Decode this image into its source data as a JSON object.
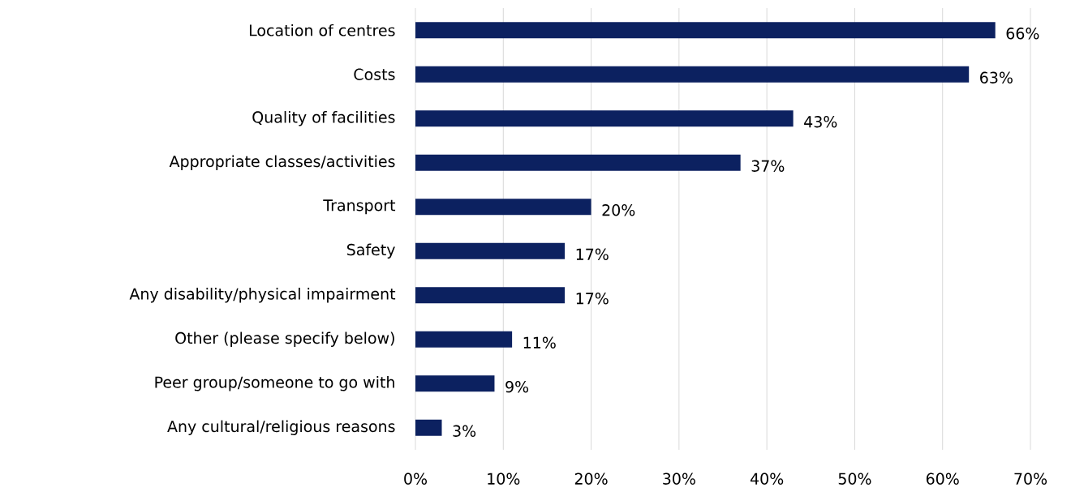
{
  "chart_data": {
    "type": "bar",
    "orientation": "horizontal",
    "categories": [
      "Location of centres",
      "Costs",
      "Quality of facilities",
      "Appropriate classes/activities",
      "Transport",
      "Safety",
      "Any disability/physical impairment",
      "Other (please specify below)",
      "Peer group/someone to go with",
      "Any cultural/religious reasons"
    ],
    "values": [
      66,
      63,
      43,
      37,
      20,
      17,
      17,
      11,
      9,
      3
    ],
    "value_labels": [
      "66%",
      "63%",
      "43%",
      "37%",
      "20%",
      "17%",
      "17%",
      "11%",
      "9%",
      "3%"
    ],
    "color": "#0c2160",
    "xlim": [
      0,
      70
    ],
    "xticks": [
      {
        "value": 0,
        "label": "0%"
      },
      {
        "value": 10,
        "label": "10%"
      },
      {
        "value": 20,
        "label": "20%"
      },
      {
        "value": 30,
        "label": "30%"
      },
      {
        "value": 40,
        "label": "40%"
      },
      {
        "value": 50,
        "label": "50%"
      },
      {
        "value": 60,
        "label": "60%"
      },
      {
        "value": 70,
        "label": "70%"
      }
    ],
    "grid": "x"
  }
}
